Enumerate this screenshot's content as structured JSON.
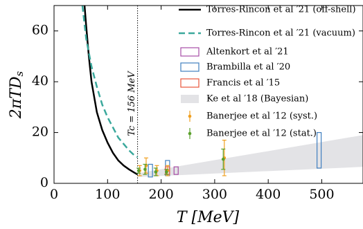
{
  "chart_data": {
    "type": "line",
    "xlabel": "T [MeV]",
    "ylabel": "2πTD",
    "ylabel_sub": "s",
    "annotation": "Tc = 156 MeV",
    "annotation_x": 156,
    "xlim": [
      0,
      577
    ],
    "ylim": [
      0,
      70
    ],
    "xticks": [
      0,
      100,
      200,
      300,
      400,
      500
    ],
    "yticks": [
      0,
      20,
      40,
      60
    ],
    "series": [
      {
        "name": "Torres-Rincon et al ′21 (off-shell)",
        "kind": "line",
        "color": "#000000",
        "dashed": false,
        "x": [
          57,
          60,
          65,
          70,
          80,
          90,
          100,
          110,
          120,
          130,
          140,
          150,
          156
        ],
        "values": [
          70,
          62,
          50,
          40,
          28,
          21,
          16,
          12,
          9,
          7,
          5.5,
          4.2,
          3.5
        ]
      },
      {
        "name": "Torres-Rincon et al ′21 (vacuum)",
        "kind": "line",
        "color": "#3aa89c",
        "dashed": true,
        "x": [
          53,
          60,
          70,
          80,
          90,
          100,
          110,
          120,
          130,
          140,
          150,
          156
        ],
        "values": [
          70,
          57,
          46,
          38,
          31,
          26,
          22,
          18,
          15.5,
          13,
          11,
          10.3
        ]
      },
      {
        "name": "Altenkort et al ′21",
        "kind": "box",
        "color": "#a64ca6",
        "x": [
          228
        ],
        "low": [
          3.5
        ],
        "high": [
          6.5
        ]
      },
      {
        "name": "Brambilla et al ′20",
        "kind": "box",
        "color": "#3f7fbf",
        "x": [
          180,
          212,
          495
        ],
        "low": [
          2.5,
          3,
          6
        ],
        "high": [
          7.5,
          9,
          20
        ]
      },
      {
        "name": "Francis et al ′15",
        "kind": "box",
        "color": "#e8553a",
        "x": [
          212
        ],
        "low": [
          3.5
        ],
        "high": [
          6.5
        ]
      },
      {
        "name": "Ke et al ′18 (Bayesian)",
        "kind": "band",
        "color": "#e3e3e6",
        "x": [
          156,
          577
        ],
        "low": [
          2.5,
          6.5
        ],
        "high": [
          4,
          19
        ]
      },
      {
        "name": "Banerjee et al ′12 (syst.)",
        "kind": "errorbar",
        "color": "#f0a020",
        "x": [
          160,
          172,
          192,
          212,
          318
        ],
        "values": [
          5,
          7,
          5,
          5,
          10
        ],
        "errors": [
          2,
          3,
          2,
          2,
          7
        ]
      },
      {
        "name": "Banerjee et al ′12 (stat.)",
        "kind": "errorbar",
        "color": "#5aa02c",
        "x": [
          158,
          170,
          190,
          210,
          316
        ],
        "values": [
          5,
          5.5,
          4.5,
          4.5,
          9.5
        ],
        "errors": [
          1,
          2,
          1.5,
          1,
          4
        ]
      }
    ]
  }
}
